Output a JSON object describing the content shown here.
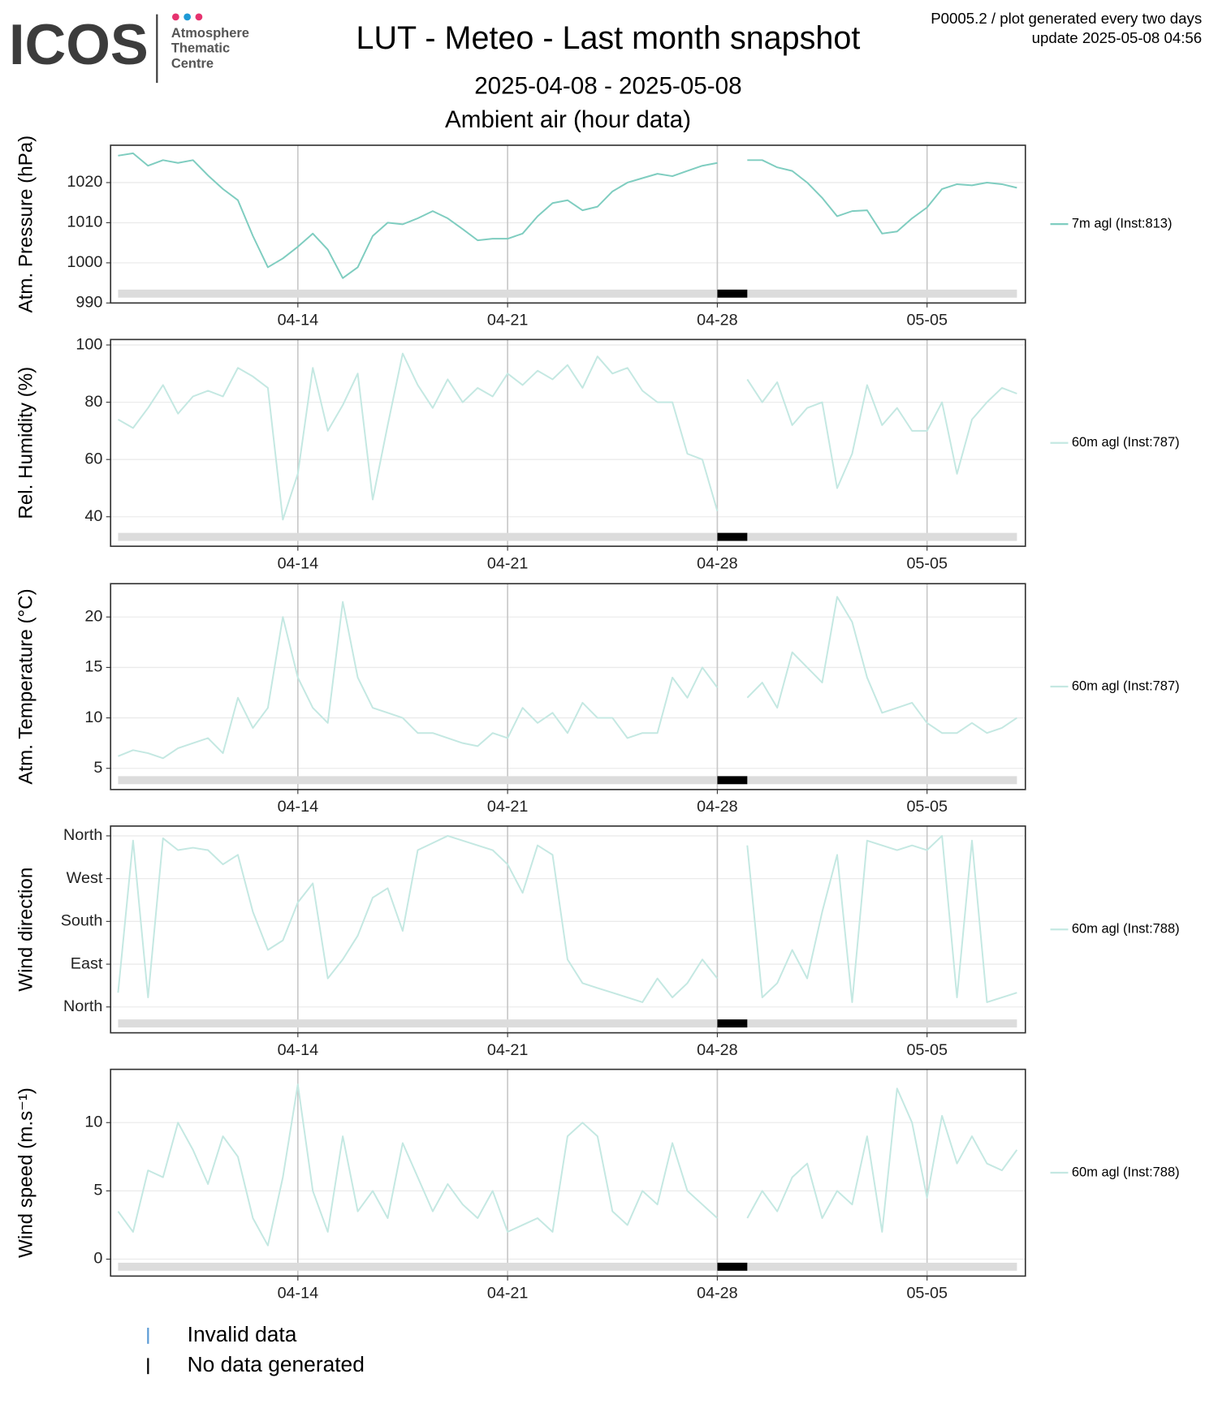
{
  "header": {
    "logo": "ICOS",
    "logo_lines": [
      "Atmosphere",
      "Thematic",
      "Centre"
    ],
    "title": "LUT - Meteo - Last month snapshot",
    "subtitle": "2025-04-08 - 2025-05-08",
    "section": "Ambient air (hour data)",
    "note": "P0005.2 / plot generated every two days",
    "update": "update  2025-05-08 04:56"
  },
  "no_data": [
    {
      "from": "2025-04-28T00:00",
      "to": "2025-04-29T00:00"
    }
  ],
  "status_legend": [
    {
      "label": "Invalid data",
      "color": "#5b9bd5"
    },
    {
      "label": "No data generated",
      "color": "#000000"
    }
  ],
  "chart_data": [
    {
      "type": "line",
      "ylabel": "Atm. Pressure (hPa)",
      "x": [
        "2025-04-08T00:00",
        "2025-04-08T12:00",
        "2025-04-09T00:00",
        "2025-04-09T12:00",
        "2025-04-10T00:00",
        "2025-04-10T12:00",
        "2025-04-11T00:00",
        "2025-04-11T12:00",
        "2025-04-12T00:00",
        "2025-04-12T12:00",
        "2025-04-13T00:00",
        "2025-04-13T12:00",
        "2025-04-14T00:00",
        "2025-04-14T12:00",
        "2025-04-15T00:00",
        "2025-04-15T12:00",
        "2025-04-16T00:00",
        "2025-04-16T12:00",
        "2025-04-17T00:00",
        "2025-04-17T12:00",
        "2025-04-18T00:00",
        "2025-04-18T12:00",
        "2025-04-19T00:00",
        "2025-04-19T12:00",
        "2025-04-20T00:00",
        "2025-04-20T12:00",
        "2025-04-21T00:00",
        "2025-04-21T12:00",
        "2025-04-22T00:00",
        "2025-04-22T12:00",
        "2025-04-23T00:00",
        "2025-04-23T12:00",
        "2025-04-24T00:00",
        "2025-04-24T12:00",
        "2025-04-25T00:00",
        "2025-04-25T12:00",
        "2025-04-26T00:00",
        "2025-04-26T12:00",
        "2025-04-27T00:00",
        "2025-04-27T12:00",
        "2025-04-28T00:00",
        "2025-04-28T12:00",
        "2025-04-29T00:00",
        "2025-04-29T12:00",
        "2025-04-30T00:00",
        "2025-04-30T12:00",
        "2025-05-01T00:00",
        "2025-05-01T12:00",
        "2025-05-02T00:00",
        "2025-05-02T12:00",
        "2025-05-03T00:00",
        "2025-05-03T12:00",
        "2025-05-04T00:00",
        "2025-05-04T12:00",
        "2025-05-05T00:00",
        "2025-05-05T12:00",
        "2025-05-06T00:00",
        "2025-05-06T12:00",
        "2025-05-07T00:00",
        "2025-05-07T12:00",
        "2025-05-08T00:00"
      ],
      "series": [
        {
          "name": "7m agl (Inst:813)",
          "color": "#7fcdc0",
          "values": [
            1026.7,
            1027.3,
            1024.2,
            1025.6,
            1024.9,
            1025.6,
            1021.8,
            1018.4,
            1015.6,
            1006.7,
            998.9,
            1001.1,
            1004,
            1007.3,
            1003.3,
            996.2,
            998.9,
            1006.7,
            1010,
            1009.6,
            1011.1,
            1012.9,
            1011.1,
            1008.4,
            1005.6,
            1006,
            1006,
            1007.3,
            1011.6,
            1014.9,
            1015.6,
            1013.1,
            1014,
            1017.8,
            1020,
            1021.1,
            1022.2,
            1021.6,
            1022.9,
            1024.2,
            1024.9,
            null,
            1025.6,
            1025.6,
            1023.8,
            1022.9,
            1020,
            1016.2,
            1011.6,
            1012.9,
            1013.1,
            1007.3,
            1007.8,
            1011.1,
            1013.8,
            1018.4,
            1019.6,
            1019.3,
            1020,
            1019.6,
            1018.7
          ]
        }
      ],
      "xlim": [
        "2025-04-07T18:00",
        "2025-05-08T06:45"
      ],
      "xticks": [
        {
          "value": "2025-04-14T00:00",
          "label": "04-14"
        },
        {
          "value": "2025-04-21T00:00",
          "label": "04-21"
        },
        {
          "value": "2025-04-28T00:00",
          "label": "04-28"
        },
        {
          "value": "2025-05-05T00:00",
          "label": "05-05"
        }
      ],
      "ylim": [
        990,
        1029.3
      ],
      "yticks": [
        990,
        1000,
        1010,
        1020
      ],
      "grid": true
    },
    {
      "type": "line",
      "ylabel": "Rel. Humidity (%)",
      "x": [
        "2025-04-08T00:00",
        "2025-04-08T12:00",
        "2025-04-09T00:00",
        "2025-04-09T12:00",
        "2025-04-10T00:00",
        "2025-04-10T12:00",
        "2025-04-11T00:00",
        "2025-04-11T12:00",
        "2025-04-12T00:00",
        "2025-04-12T12:00",
        "2025-04-13T00:00",
        "2025-04-13T12:00",
        "2025-04-14T00:00",
        "2025-04-14T12:00",
        "2025-04-15T00:00",
        "2025-04-15T12:00",
        "2025-04-16T00:00",
        "2025-04-16T12:00",
        "2025-04-17T00:00",
        "2025-04-17T12:00",
        "2025-04-18T00:00",
        "2025-04-18T12:00",
        "2025-04-19T00:00",
        "2025-04-19T12:00",
        "2025-04-20T00:00",
        "2025-04-20T12:00",
        "2025-04-21T00:00",
        "2025-04-21T12:00",
        "2025-04-22T00:00",
        "2025-04-22T12:00",
        "2025-04-23T00:00",
        "2025-04-23T12:00",
        "2025-04-24T00:00",
        "2025-04-24T12:00",
        "2025-04-25T00:00",
        "2025-04-25T12:00",
        "2025-04-26T00:00",
        "2025-04-26T12:00",
        "2025-04-27T00:00",
        "2025-04-27T12:00",
        "2025-04-28T00:00",
        "2025-04-28T12:00",
        "2025-04-29T00:00",
        "2025-04-29T12:00",
        "2025-04-30T00:00",
        "2025-04-30T12:00",
        "2025-05-01T00:00",
        "2025-05-01T12:00",
        "2025-05-02T00:00",
        "2025-05-02T12:00",
        "2025-05-03T00:00",
        "2025-05-03T12:00",
        "2025-05-04T00:00",
        "2025-05-04T12:00",
        "2025-05-05T00:00",
        "2025-05-05T12:00",
        "2025-05-06T00:00",
        "2025-05-06T12:00",
        "2025-05-07T00:00",
        "2025-05-07T12:00",
        "2025-05-08T00:00"
      ],
      "series": [
        {
          "name": "60m agl (Inst:787)",
          "color": "#c4e8e2",
          "values": [
            74,
            71,
            78,
            86,
            76,
            82,
            84,
            82,
            92,
            89,
            85,
            39,
            55,
            92,
            70,
            79,
            90,
            46,
            72,
            97,
            86,
            78,
            88,
            80,
            85,
            82,
            90,
            86,
            91,
            88,
            93,
            85,
            96,
            90,
            92,
            84,
            80,
            80,
            62,
            60,
            42,
            null,
            88,
            80,
            87,
            72,
            78,
            80,
            50,
            62,
            86,
            72,
            78,
            70,
            70,
            80,
            55,
            74,
            80,
            85,
            83
          ]
        }
      ],
      "xlim": [
        "2025-04-07T18:00",
        "2025-05-08T06:45"
      ],
      "xticks": [
        {
          "value": "2025-04-14T00:00",
          "label": "04-14"
        },
        {
          "value": "2025-04-21T00:00",
          "label": "04-21"
        },
        {
          "value": "2025-04-28T00:00",
          "label": "04-28"
        },
        {
          "value": "2025-05-05T00:00",
          "label": "05-05"
        }
      ],
      "ylim": [
        29.7,
        101.9
      ],
      "yticks": [
        40,
        60,
        80,
        100
      ],
      "grid": true
    },
    {
      "type": "line",
      "ylabel": "Atm. Temperature (°C)",
      "x": [
        "2025-04-08T00:00",
        "2025-04-08T12:00",
        "2025-04-09T00:00",
        "2025-04-09T12:00",
        "2025-04-10T00:00",
        "2025-04-10T12:00",
        "2025-04-11T00:00",
        "2025-04-11T12:00",
        "2025-04-12T00:00",
        "2025-04-12T12:00",
        "2025-04-13T00:00",
        "2025-04-13T12:00",
        "2025-04-14T00:00",
        "2025-04-14T12:00",
        "2025-04-15T00:00",
        "2025-04-15T12:00",
        "2025-04-16T00:00",
        "2025-04-16T12:00",
        "2025-04-17T00:00",
        "2025-04-17T12:00",
        "2025-04-18T00:00",
        "2025-04-18T12:00",
        "2025-04-19T00:00",
        "2025-04-19T12:00",
        "2025-04-20T00:00",
        "2025-04-20T12:00",
        "2025-04-21T00:00",
        "2025-04-21T12:00",
        "2025-04-22T00:00",
        "2025-04-22T12:00",
        "2025-04-23T00:00",
        "2025-04-23T12:00",
        "2025-04-24T00:00",
        "2025-04-24T12:00",
        "2025-04-25T00:00",
        "2025-04-25T12:00",
        "2025-04-26T00:00",
        "2025-04-26T12:00",
        "2025-04-27T00:00",
        "2025-04-27T12:00",
        "2025-04-28T00:00",
        "2025-04-28T12:00",
        "2025-04-29T00:00",
        "2025-04-29T12:00",
        "2025-04-30T00:00",
        "2025-04-30T12:00",
        "2025-05-01T00:00",
        "2025-05-01T12:00",
        "2025-05-02T00:00",
        "2025-05-02T12:00",
        "2025-05-03T00:00",
        "2025-05-03T12:00",
        "2025-05-04T00:00",
        "2025-05-04T12:00",
        "2025-05-05T00:00",
        "2025-05-05T12:00",
        "2025-05-06T00:00",
        "2025-05-06T12:00",
        "2025-05-07T00:00",
        "2025-05-07T12:00",
        "2025-05-08T00:00"
      ],
      "series": [
        {
          "name": "60m agl (Inst:787)",
          "color": "#c4e8e2",
          "values": [
            6.2,
            6.8,
            6.5,
            6,
            7,
            7.5,
            8,
            6.5,
            12,
            9,
            11,
            20,
            14,
            11,
            9.5,
            21.5,
            14,
            11,
            10.5,
            10,
            8.5,
            8.5,
            8,
            7.5,
            7.2,
            8.5,
            8,
            11,
            9.5,
            10.5,
            8.5,
            11.5,
            10,
            10,
            8,
            8.5,
            8.5,
            14,
            12,
            15,
            13,
            null,
            12,
            13.5,
            11,
            16.5,
            15,
            13.5,
            22,
            19.5,
            14,
            10.5,
            11,
            11.5,
            9.5,
            8.5,
            8.5,
            9.5,
            8.5,
            9,
            10
          ]
        }
      ],
      "xlim": [
        "2025-04-07T18:00",
        "2025-05-08T06:45"
      ],
      "xticks": [
        {
          "value": "2025-04-14T00:00",
          "label": "04-14"
        },
        {
          "value": "2025-04-21T00:00",
          "label": "04-21"
        },
        {
          "value": "2025-04-28T00:00",
          "label": "04-28"
        },
        {
          "value": "2025-05-05T00:00",
          "label": "05-05"
        }
      ],
      "ylim": [
        2.9,
        23.3
      ],
      "yticks": [
        5,
        10,
        15,
        20
      ],
      "grid": true
    },
    {
      "type": "line",
      "ylabel": "Wind direction",
      "x": [
        "2025-04-08T00:00",
        "2025-04-08T12:00",
        "2025-04-09T00:00",
        "2025-04-09T12:00",
        "2025-04-10T00:00",
        "2025-04-10T12:00",
        "2025-04-11T00:00",
        "2025-04-11T12:00",
        "2025-04-12T00:00",
        "2025-04-12T12:00",
        "2025-04-13T00:00",
        "2025-04-13T12:00",
        "2025-04-14T00:00",
        "2025-04-14T12:00",
        "2025-04-15T00:00",
        "2025-04-15T12:00",
        "2025-04-16T00:00",
        "2025-04-16T12:00",
        "2025-04-17T00:00",
        "2025-04-17T12:00",
        "2025-04-18T00:00",
        "2025-04-18T12:00",
        "2025-04-19T00:00",
        "2025-04-19T12:00",
        "2025-04-20T00:00",
        "2025-04-20T12:00",
        "2025-04-21T00:00",
        "2025-04-21T12:00",
        "2025-04-22T00:00",
        "2025-04-22T12:00",
        "2025-04-23T00:00",
        "2025-04-23T12:00",
        "2025-04-24T00:00",
        "2025-04-24T12:00",
        "2025-04-25T00:00",
        "2025-04-25T12:00",
        "2025-04-26T00:00",
        "2025-04-26T12:00",
        "2025-04-27T00:00",
        "2025-04-27T12:00",
        "2025-04-28T00:00",
        "2025-04-28T12:00",
        "2025-04-29T00:00",
        "2025-04-29T12:00",
        "2025-04-30T00:00",
        "2025-04-30T12:00",
        "2025-05-01T00:00",
        "2025-05-01T12:00",
        "2025-05-02T00:00",
        "2025-05-02T12:00",
        "2025-05-03T00:00",
        "2025-05-03T12:00",
        "2025-05-04T00:00",
        "2025-05-04T12:00",
        "2025-05-05T00:00",
        "2025-05-05T12:00",
        "2025-05-06T00:00",
        "2025-05-06T12:00",
        "2025-05-07T00:00",
        "2025-05-07T12:00",
        "2025-05-08T00:00"
      ],
      "series": [
        {
          "name": "60m agl (Inst:788)",
          "color": "#c4e8e2",
          "values": [
            30,
            350,
            20,
            355,
            330,
            335,
            330,
            300,
            320,
            200,
            120,
            140,
            220,
            260,
            60,
            100,
            150,
            230,
            250,
            160,
            330,
            345,
            360,
            350,
            340,
            330,
            300,
            240,
            340,
            320,
            100,
            50,
            40,
            30,
            20,
            10,
            60,
            20,
            50,
            100,
            60,
            null,
            340,
            20,
            50,
            120,
            60,
            200,
            320,
            10,
            350,
            340,
            330,
            340,
            330,
            360,
            20,
            350,
            10,
            20,
            30
          ]
        }
      ],
      "xlim": [
        "2025-04-07T18:00",
        "2025-05-08T06:45"
      ],
      "xticks": [
        {
          "value": "2025-04-14T00:00",
          "label": "04-14"
        },
        {
          "value": "2025-04-21T00:00",
          "label": "04-21"
        },
        {
          "value": "2025-04-28T00:00",
          "label": "04-28"
        },
        {
          "value": "2025-05-05T00:00",
          "label": "05-05"
        }
      ],
      "ylim": [
        -54.4,
        380.6
      ],
      "yticks": [
        {
          "value": 0,
          "label": "North"
        },
        {
          "value": 90,
          "label": "East"
        },
        {
          "value": 180,
          "label": "South"
        },
        {
          "value": 270,
          "label": "West"
        },
        {
          "value": 360,
          "label": "North"
        }
      ],
      "grid": true
    },
    {
      "type": "line",
      "ylabel": "Wind speed (m.s⁻¹)",
      "x": [
        "2025-04-08T00:00",
        "2025-04-08T12:00",
        "2025-04-09T00:00",
        "2025-04-09T12:00",
        "2025-04-10T00:00",
        "2025-04-10T12:00",
        "2025-04-11T00:00",
        "2025-04-11T12:00",
        "2025-04-12T00:00",
        "2025-04-12T12:00",
        "2025-04-13T00:00",
        "2025-04-13T12:00",
        "2025-04-14T00:00",
        "2025-04-14T12:00",
        "2025-04-15T00:00",
        "2025-04-15T12:00",
        "2025-04-16T00:00",
        "2025-04-16T12:00",
        "2025-04-17T00:00",
        "2025-04-17T12:00",
        "2025-04-18T00:00",
        "2025-04-18T12:00",
        "2025-04-19T00:00",
        "2025-04-19T12:00",
        "2025-04-20T00:00",
        "2025-04-20T12:00",
        "2025-04-21T00:00",
        "2025-04-21T12:00",
        "2025-04-22T00:00",
        "2025-04-22T12:00",
        "2025-04-23T00:00",
        "2025-04-23T12:00",
        "2025-04-24T00:00",
        "2025-04-24T12:00",
        "2025-04-25T00:00",
        "2025-04-25T12:00",
        "2025-04-26T00:00",
        "2025-04-26T12:00",
        "2025-04-27T00:00",
        "2025-04-27T12:00",
        "2025-04-28T00:00",
        "2025-04-28T12:00",
        "2025-04-29T00:00",
        "2025-04-29T12:00",
        "2025-04-30T00:00",
        "2025-04-30T12:00",
        "2025-05-01T00:00",
        "2025-05-01T12:00",
        "2025-05-02T00:00",
        "2025-05-02T12:00",
        "2025-05-03T00:00",
        "2025-05-03T12:00",
        "2025-05-04T00:00",
        "2025-05-04T12:00",
        "2025-05-05T00:00",
        "2025-05-05T12:00",
        "2025-05-06T00:00",
        "2025-05-06T12:00",
        "2025-05-07T00:00",
        "2025-05-07T12:00",
        "2025-05-08T00:00"
      ],
      "series": [
        {
          "name": "60m agl (Inst:788)",
          "color": "#c4e8e2",
          "values": [
            3.5,
            2,
            6.5,
            6,
            10,
            8,
            5.5,
            9,
            7.5,
            3,
            1,
            6,
            12.8,
            5,
            2,
            9,
            3.5,
            5,
            3,
            8.5,
            6,
            3.5,
            5.5,
            4,
            3,
            5,
            2,
            2.5,
            3,
            2,
            9,
            10,
            9,
            3.5,
            2.5,
            5,
            4,
            8.5,
            5,
            4,
            3,
            null,
            3,
            5,
            3.5,
            6,
            7,
            3,
            5,
            4,
            9,
            2,
            12.5,
            10,
            4.5,
            10.5,
            7,
            9,
            7,
            6.5,
            8
          ]
        }
      ],
      "xlim": [
        "2025-04-07T18:00",
        "2025-05-08T06:45"
      ],
      "xticks": [
        {
          "value": "2025-04-14T00:00",
          "label": "04-14"
        },
        {
          "value": "2025-04-21T00:00",
          "label": "04-21"
        },
        {
          "value": "2025-04-28T00:00",
          "label": "04-28"
        },
        {
          "value": "2025-05-05T00:00",
          "label": "05-05"
        }
      ],
      "ylim": [
        -1.24,
        13.9
      ],
      "yticks": [
        0,
        5,
        10
      ],
      "grid": true
    }
  ]
}
